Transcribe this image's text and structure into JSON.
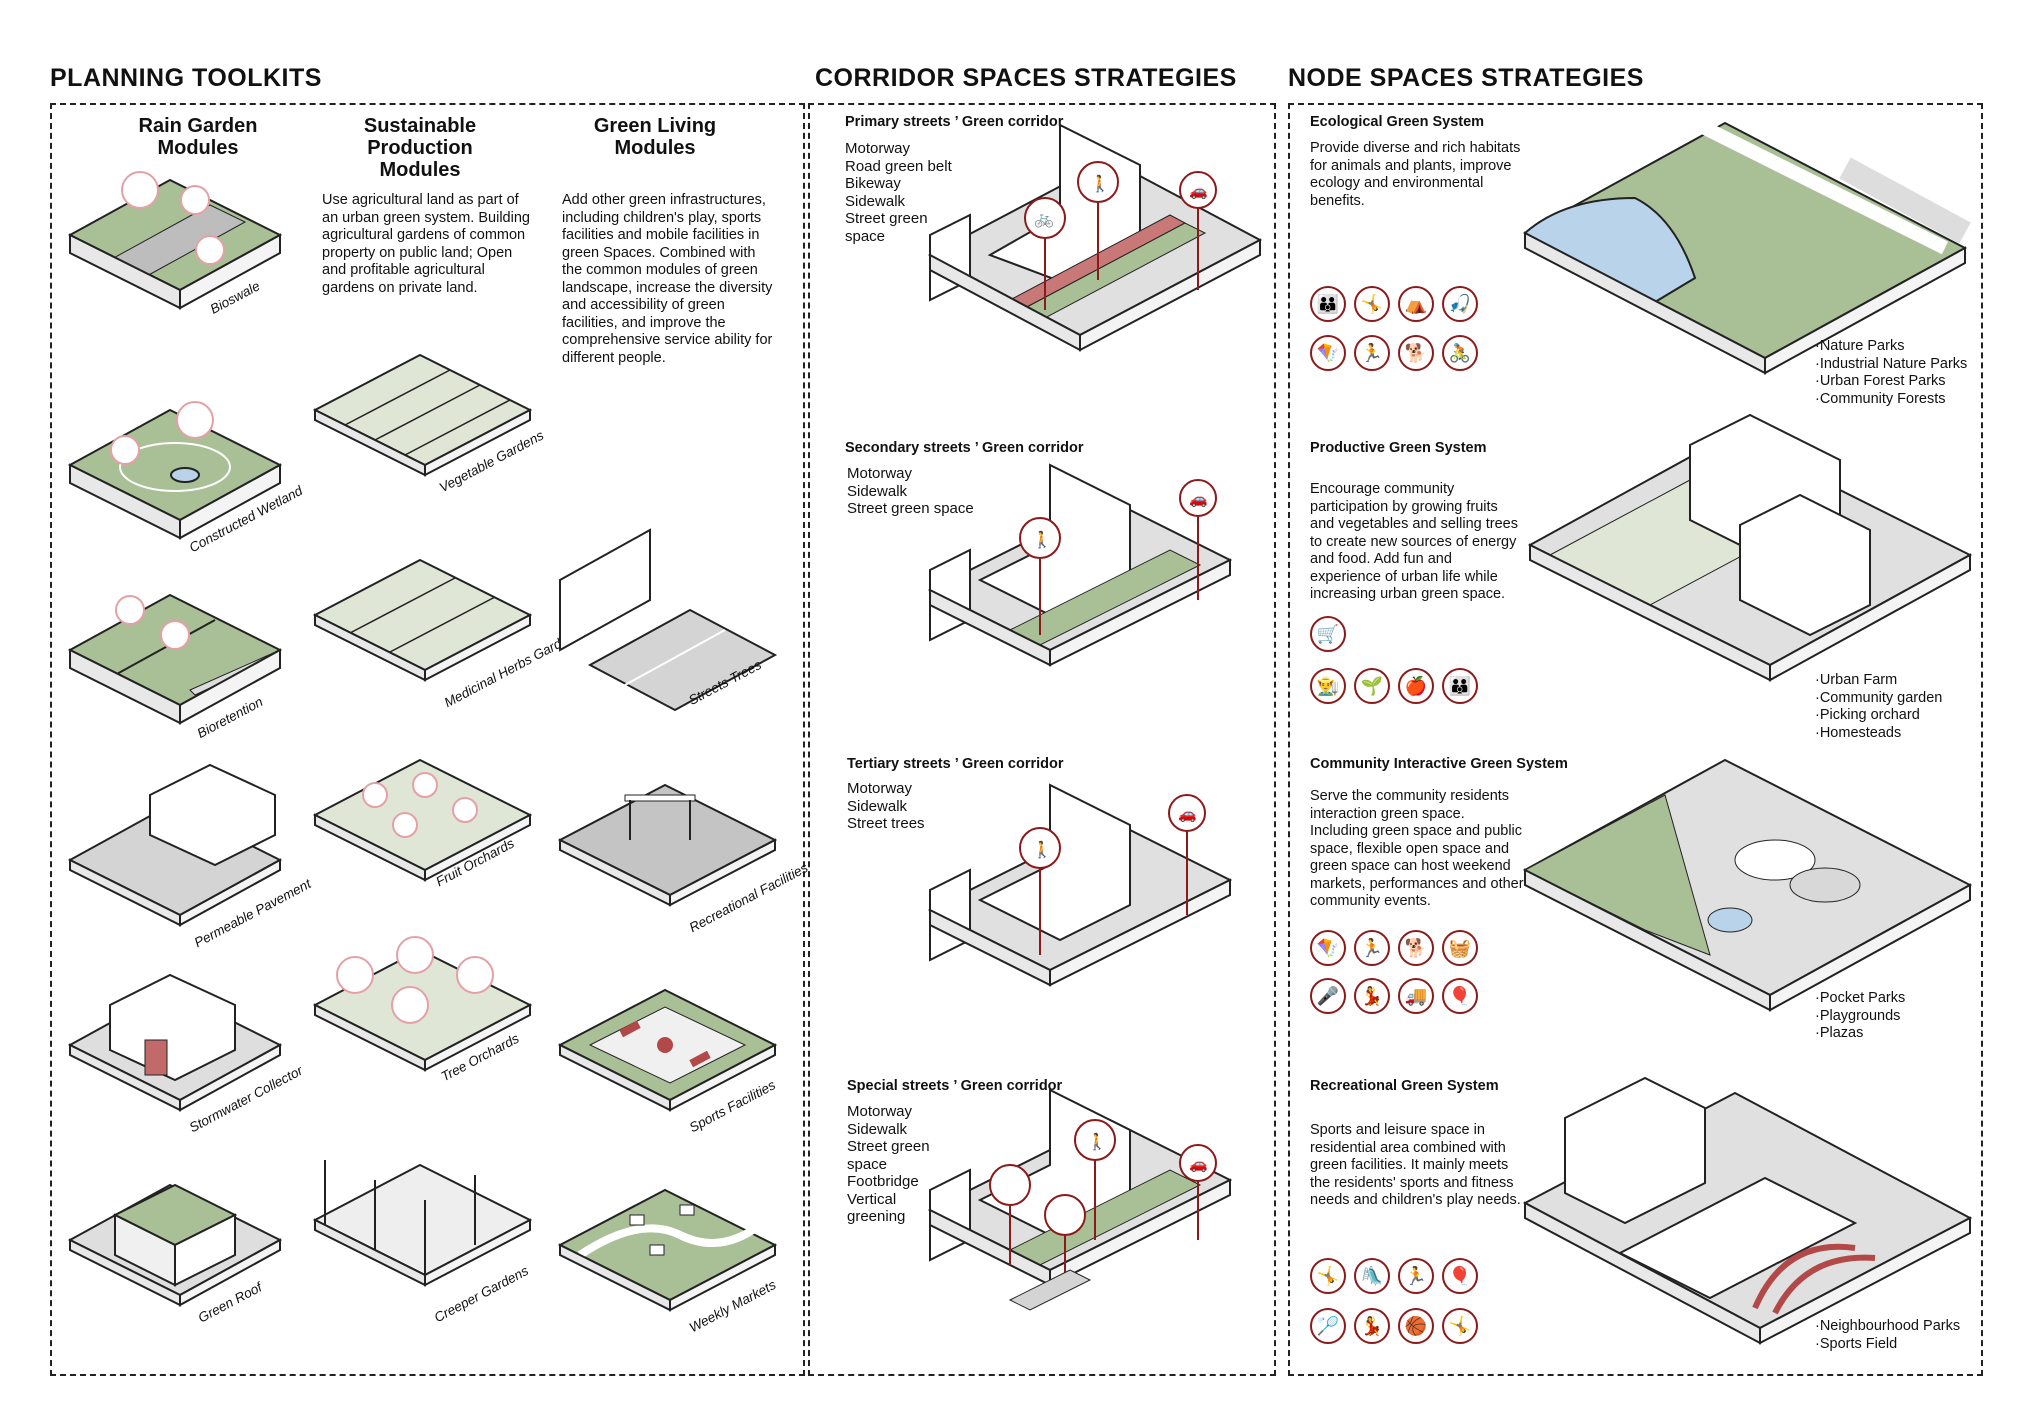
{
  "sections": {
    "planning": "PLANNING TOOLKITS",
    "corridor": "CORRIDOR SPACES STRATEGIES",
    "node": "NODE SPACES STRATEGIES"
  },
  "planning": {
    "col1_title": "Rain Garden Modules",
    "col2_title": "Sustainable Production Modules",
    "col3_title": "Green Living Modules",
    "col2_desc": "Use agricultural land as part of an urban green system. Building agricultural gardens of common property on public land; Open and profitable agricultural gardens on private land.",
    "col3_desc": "Add other green infrastructures, including children's play, sports facilities and mobile facilities in green Spaces. Combined with the common modules of green landscape, increase the diversity and accessibility of green facilities, and improve the comprehensive service ability for different people.",
    "modules": {
      "bioswale": "Bioswale",
      "wetland": "Constructed Wetland",
      "bioretention": "Bioretention",
      "pavement": "Permeable Pavement",
      "collector": "Stormwater Collector",
      "roof": "Green Roof",
      "vegetable": "Vegetable Gardens",
      "medicinal": "Medicinal Herbs Gardens",
      "fruit": "Fruit Orchards",
      "tree": "Tree Orchards",
      "creeper": "Creeper Gardens",
      "street_trees": "Streets Trees",
      "recreational": "Recreational Facilities",
      "sports": "Sports Facilities",
      "markets": "Weekly Markets"
    }
  },
  "corridor": {
    "primary": {
      "title": "Primary streets ’ Green corridor",
      "items": [
        "Motorway",
        "Road green belt",
        "Bikeway",
        "Sidewalk",
        "Street green",
        "space"
      ]
    },
    "secondary": {
      "title": "Secondary streets ’ Green corridor",
      "items": [
        "Motorway",
        "Sidewalk",
        "Street green space"
      ]
    },
    "tertiary": {
      "title": "Tertiary streets ’ Green corridor",
      "items": [
        "Motorway",
        "Sidewalk",
        "Street trees"
      ]
    },
    "special": {
      "title": "Special streets ’ Green corridor",
      "items": [
        "Motorway",
        "Sidewalk",
        "Street green",
        "space",
        "Footbridge",
        "Vertical",
        "greening"
      ]
    }
  },
  "node": {
    "ecological": {
      "title": "Ecological Green System",
      "desc": "Provide diverse and rich habitats for animals and plants, improve ecology and environmental benefits.",
      "list": [
        "·Nature Parks",
        "·Industrial Nature Parks",
        "·Urban Forest Parks",
        "·Community Forests"
      ],
      "icons": [
        "family-icon",
        "kids-play-icon",
        "camping-icon",
        "fishing-icon",
        "kite-icon",
        "running-icon",
        "dog-walking-icon",
        "cycling-icon"
      ]
    },
    "productive": {
      "title": "Productive Green System",
      "desc": "Encourage community participation by growing fruits and vegetables and selling trees to create new sources of energy and food. Add fun and experience of urban life while increasing urban green space.",
      "list": [
        "·Urban Farm",
        "·Community garden",
        "·Picking orchard",
        "·Homesteads"
      ],
      "icons": [
        "market-icon",
        "farming-icon",
        "planting-icon",
        "picking-icon",
        "family-icon"
      ]
    },
    "community": {
      "title": "Community Interactive Green System",
      "desc": "Serve the community residents interaction green space. Including green space and public space, flexible open space and green space can host weekend markets, performances and other community events.",
      "list": [
        "·Pocket Parks",
        "·Playgrounds",
        "·Plazas"
      ],
      "icons": [
        "kite-icon",
        "running-icon",
        "dog-walking-icon",
        "picnic-icon",
        "performance-icon",
        "dancing-icon",
        "food-truck-icon",
        "balloon-icon"
      ]
    },
    "recreational": {
      "title": "Recreational Green System",
      "desc": "Sports and leisure space in residential area combined with green facilities. It mainly meets the residents' sports and fitness needs and children's play needs.",
      "list": [
        "·Neighbourhood  Parks",
        "·Sports Field"
      ],
      "icons": [
        "kids-play-icon",
        "swing-icon",
        "running-icon",
        "balloon-icon",
        "badminton-icon",
        "dancing-icon",
        "basketball-icon",
        "kids-play-icon"
      ]
    }
  },
  "colors": {
    "accent": "#8b1a1a",
    "green": "#a9bf96",
    "grey": "#bdbdbd",
    "pink": "#e5a0a6",
    "water": "#b9d3ea"
  }
}
